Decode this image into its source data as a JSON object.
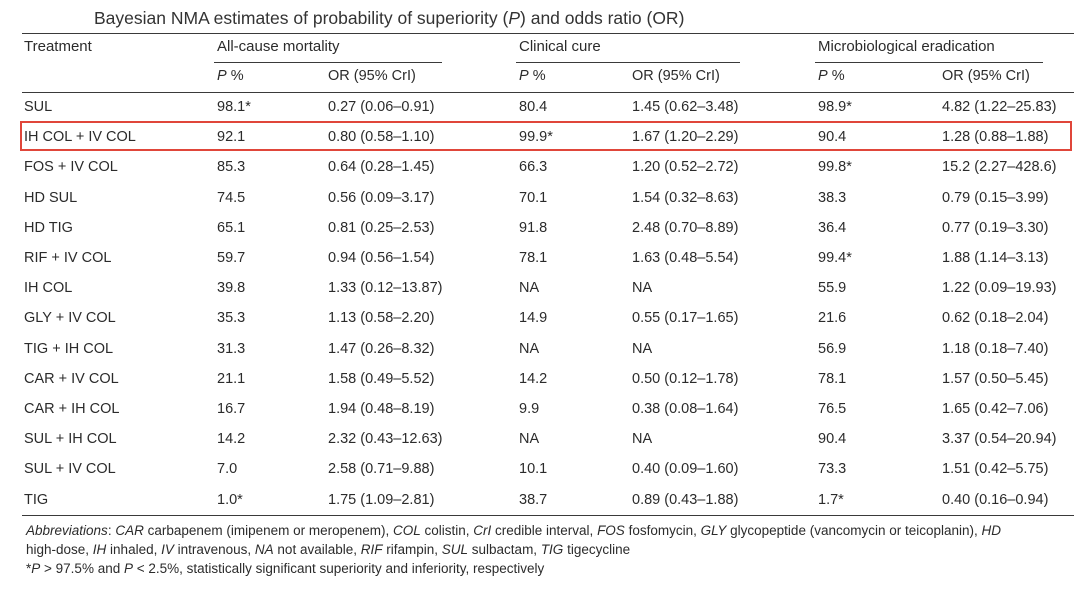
{
  "title": {
    "pre": "Bayesian NMA estimates of probability of superiority (",
    "p": "P",
    "mid": ") and odds ratio (OR)"
  },
  "header": {
    "treatment": "Treatment",
    "groups": [
      "All-cause mortality",
      "Clinical cure",
      "Microbiological eradication"
    ],
    "sub": {
      "p": "P",
      "pct": " %",
      "or": "OR (95% CrI)"
    }
  },
  "rows": [
    [
      "SUL",
      "98.1*",
      "0.27 (0.06–0.91)",
      "80.4",
      "1.45 (0.62–3.48)",
      "98.9*",
      "4.82 (1.22–25.83)"
    ],
    [
      "IH COL + IV COL",
      "92.1",
      "0.80 (0.58–1.10)",
      "99.9*",
      "1.67 (1.20–2.29)",
      "90.4",
      "1.28 (0.88–1.88)"
    ],
    [
      "FOS + IV COL",
      "85.3",
      "0.64 (0.28–1.45)",
      "66.3",
      "1.20 (0.52–2.72)",
      "99.8*",
      "15.2 (2.27–428.6)"
    ],
    [
      "HD SUL",
      "74.5",
      "0.56 (0.09–3.17)",
      "70.1",
      "1.54 (0.32–8.63)",
      "38.3",
      "0.79 (0.15–3.99)"
    ],
    [
      "HD TIG",
      "65.1",
      "0.81 (0.25–2.53)",
      "91.8",
      "2.48 (0.70–8.89)",
      "36.4",
      "0.77 (0.19–3.30)"
    ],
    [
      "RIF + IV COL",
      "59.7",
      "0.94 (0.56–1.54)",
      "78.1",
      "1.63 (0.48–5.54)",
      "99.4*",
      "1.88 (1.14–3.13)"
    ],
    [
      "IH COL",
      "39.8",
      "1.33 (0.12–13.87)",
      "NA",
      "NA",
      "55.9",
      "1.22 (0.09–19.93)"
    ],
    [
      "GLY + IV COL",
      "35.3",
      "1.13 (0.58–2.20)",
      "14.9",
      "0.55 (0.17–1.65)",
      "21.6",
      "0.62 (0.18–2.04)"
    ],
    [
      "TIG + IH COL",
      "31.3",
      "1.47 (0.26–8.32)",
      "NA",
      "NA",
      "56.9",
      "1.18 (0.18–7.40)"
    ],
    [
      "CAR + IV COL",
      "21.1",
      "1.58 (0.49–5.52)",
      "14.2",
      "0.50 (0.12–1.78)",
      "78.1",
      "1.57 (0.50–5.45)"
    ],
    [
      "CAR + IH COL",
      "16.7",
      "1.94 (0.48–8.19)",
      "9.9",
      "0.38 (0.08–1.64)",
      "76.5",
      "1.65 (0.42–7.06)"
    ],
    [
      "SUL + IH COL",
      "14.2",
      "2.32 (0.43–12.63)",
      "NA",
      "NA",
      "90.4",
      "3.37 (0.54–20.94)"
    ],
    [
      "SUL + IV COL",
      "7.0",
      "2.58 (0.71–9.88)",
      "10.1",
      "0.40 (0.09–1.60)",
      "73.3",
      "1.51 (0.42–5.75)"
    ],
    [
      "TIG",
      "1.0*",
      "1.75 (1.09–2.81)",
      "38.7",
      "0.89 (0.43–1.88)",
      "1.7*",
      "0.40 (0.16–0.94)"
    ]
  ],
  "highlighted_row": "IH COL + IV COL",
  "highlight_color": "#e0463a",
  "footnote": {
    "abbrev_label": "Abbreviations",
    "sep": ": ",
    "abbrevs": [
      [
        "CAR",
        " carbapenem (imipenem or meropenem), "
      ],
      [
        "COL",
        " colistin, "
      ],
      [
        "CrI",
        " credible interval, "
      ],
      [
        "FOS",
        " fosfomycin, "
      ],
      [
        "GLY",
        " glycopeptide (vancomycin or teicoplanin), "
      ],
      [
        "HD",
        ""
      ],
      [
        "",
        "high-dose, "
      ],
      [
        "IH",
        " inhaled, "
      ],
      [
        "IV",
        " intravenous, "
      ],
      [
        "NA",
        " not available, "
      ],
      [
        "RIF",
        " rifampin, "
      ],
      [
        "SUL",
        " sulbactam, "
      ],
      [
        "TIG",
        " tigecycline"
      ]
    ],
    "sig": {
      "star": "*",
      "p1": "P",
      "gt": " > 97.5% and ",
      "p2": "P",
      "lt": " < 2.5%, statistically significant superiority and inferiority, respectively"
    }
  }
}
